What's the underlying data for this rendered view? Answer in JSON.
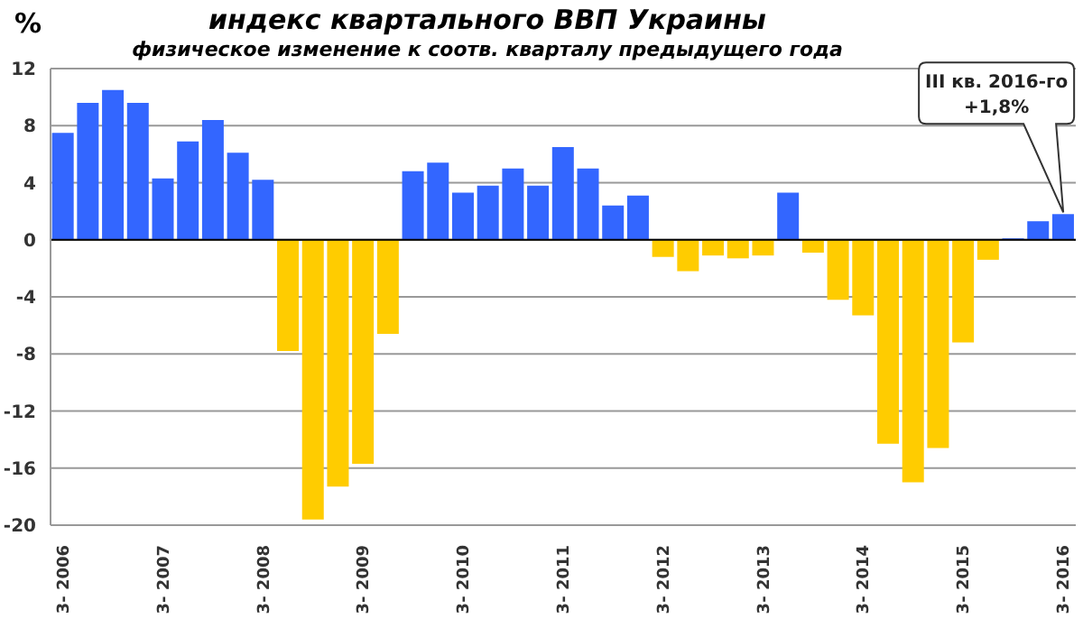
{
  "chart_data": {
    "type": "bar",
    "title": "индекс квартального ВВП Украины",
    "subtitle": "физическое изменение к соотв. кварталу предыдущего года",
    "ylabel": "%",
    "categories": [
      "3- 2006",
      null,
      null,
      null,
      "3- 2007",
      null,
      null,
      null,
      "3- 2008",
      null,
      null,
      null,
      "3- 2009",
      null,
      null,
      null,
      "3- 2010",
      null,
      null,
      null,
      "3- 2011",
      null,
      null,
      null,
      "3- 2012",
      null,
      null,
      null,
      "3- 2013",
      null,
      null,
      null,
      "3- 2014",
      null,
      null,
      null,
      "3- 2015",
      null,
      null,
      null,
      "3- 2016"
    ],
    "values": [
      7.5,
      9.6,
      10.5,
      9.6,
      4.3,
      6.9,
      8.4,
      6.1,
      4.2,
      -7.8,
      -19.6,
      -17.3,
      -15.7,
      -6.6,
      4.8,
      5.4,
      3.3,
      3.8,
      5.0,
      3.8,
      6.5,
      5.0,
      2.4,
      3.1,
      -1.2,
      -2.2,
      -1.1,
      -1.3,
      -1.1,
      3.3,
      -0.9,
      -4.2,
      -5.3,
      -14.3,
      -17.0,
      -14.6,
      -7.2,
      -1.4,
      0.1,
      1.3,
      1.8
    ],
    "colors": [
      "#3366ff",
      "#3366ff",
      "#3366ff",
      "#3366ff",
      "#3366ff",
      "#3366ff",
      "#3366ff",
      "#3366ff",
      "#3366ff",
      "#ffcc00",
      "#ffcc00",
      "#ffcc00",
      "#ffcc00",
      "#ffcc00",
      "#3366ff",
      "#3366ff",
      "#3366ff",
      "#3366ff",
      "#3366ff",
      "#3366ff",
      "#3366ff",
      "#3366ff",
      "#3366ff",
      "#3366ff",
      "#ffcc00",
      "#ffcc00",
      "#ffcc00",
      "#ffcc00",
      "#ffcc00",
      "#3366ff",
      "#ffcc00",
      "#ffcc00",
      "#ffcc00",
      "#ffcc00",
      "#ffcc00",
      "#ffcc00",
      "#ffcc00",
      "#ffcc00",
      "#3366ff",
      "#3366ff",
      "#3366ff"
    ],
    "ylim": [
      -20,
      12
    ],
    "yticks": [
      -20,
      -16,
      -12,
      -8,
      -4,
      0,
      4,
      8,
      12
    ],
    "grid": "y",
    "annotations": [
      "III кв. 2016-го\n+1,8%"
    ]
  }
}
